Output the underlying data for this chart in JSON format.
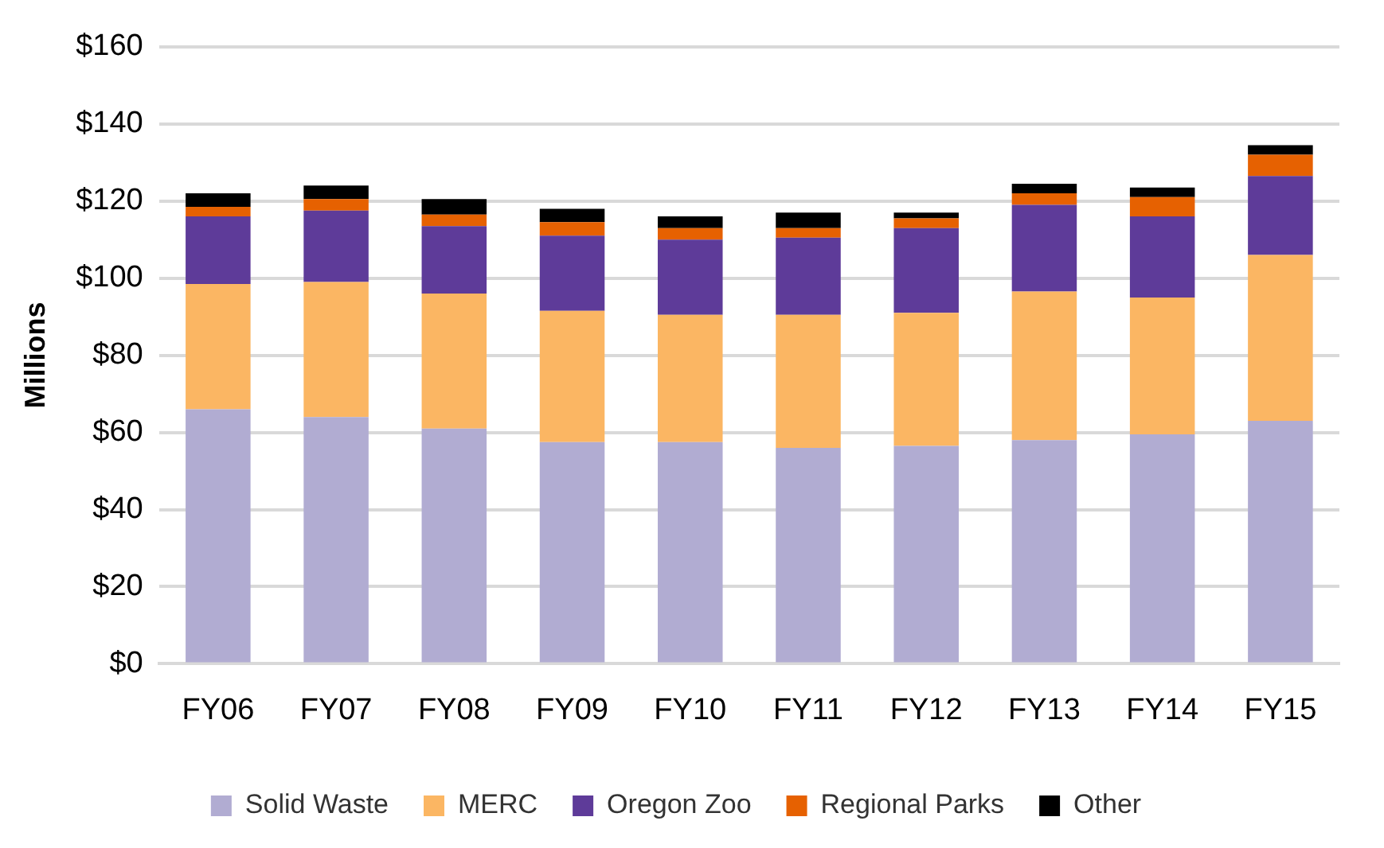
{
  "chart_data": {
    "type": "bar",
    "stacked": true,
    "ylabel": "Millions",
    "categories": [
      "FY06",
      "FY07",
      "FY08",
      "FY09",
      "FY10",
      "FY11",
      "FY12",
      "FY13",
      "FY14",
      "FY15"
    ],
    "series": [
      {
        "name": "Solid Waste",
        "color": "#b1acd2",
        "values": [
          66,
          64,
          61,
          57.5,
          57.5,
          56,
          56.5,
          58,
          59.5,
          63
        ]
      },
      {
        "name": "MERC",
        "color": "#fbb663",
        "values": [
          32.5,
          35,
          35,
          34,
          33,
          34.5,
          34.5,
          38.5,
          35.5,
          43
        ]
      },
      {
        "name": "Oregon Zoo",
        "color": "#5e3b99",
        "values": [
          17.5,
          18.5,
          17.5,
          19.5,
          19.5,
          20,
          22,
          22.5,
          21,
          20.5
        ]
      },
      {
        "name": "Regional Parks",
        "color": "#e66101",
        "values": [
          2.5,
          3,
          3,
          3.5,
          3,
          2.5,
          2.5,
          3,
          5,
          5.5
        ]
      },
      {
        "name": "Other",
        "color": "#000000",
        "values": [
          3.5,
          3.5,
          4,
          3.5,
          3,
          4,
          1.5,
          2.5,
          2.5,
          2.5
        ]
      }
    ],
    "ylim": [
      0,
      160
    ],
    "yticks": [
      {
        "value": 0,
        "label": "$0"
      },
      {
        "value": 20,
        "label": "$20"
      },
      {
        "value": 40,
        "label": "$40"
      },
      {
        "value": 60,
        "label": "$60"
      },
      {
        "value": 80,
        "label": "$80"
      },
      {
        "value": 100,
        "label": "$100"
      },
      {
        "value": 120,
        "label": "$120"
      },
      {
        "value": 140,
        "label": "$140"
      },
      {
        "value": 160,
        "label": "$160"
      }
    ],
    "grid": "y",
    "legend": "bottom"
  }
}
